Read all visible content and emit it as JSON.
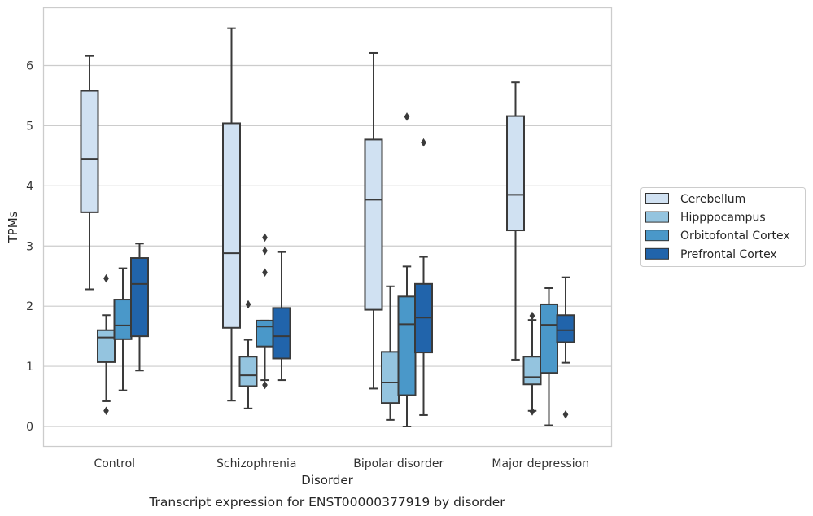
{
  "chart_data": {
    "type": "boxplot",
    "title": "",
    "caption": "Transcript expression for ENST00000377919 by disorder",
    "xlabel": "Disorder",
    "ylabel": "TPMs",
    "ylim": [
      -0.32,
      6.95
    ],
    "yticks": [
      0,
      1,
      2,
      3,
      4,
      5,
      6
    ],
    "grid": "horizontal",
    "legend_position": "right",
    "categories": [
      "Control",
      "Schizophrenia",
      "Bipolar disorder",
      "Major depression"
    ],
    "series": [
      {
        "name": "Cerebellum",
        "color": "#d0e1f2",
        "boxes": [
          {
            "whislo": 2.28,
            "q1": 3.56,
            "med": 4.45,
            "q3": 5.58,
            "whishi": 6.16,
            "fliers": []
          },
          {
            "whislo": 0.43,
            "q1": 1.64,
            "med": 2.88,
            "q3": 5.04,
            "whishi": 6.62,
            "fliers": []
          },
          {
            "whislo": 0.63,
            "q1": 1.94,
            "med": 3.77,
            "q3": 4.77,
            "whishi": 6.21,
            "fliers": []
          },
          {
            "whislo": 1.11,
            "q1": 3.26,
            "med": 3.85,
            "q3": 5.16,
            "whishi": 5.72,
            "fliers": []
          }
        ]
      },
      {
        "name": "Hipppocampus",
        "color": "#94c4df",
        "boxes": [
          {
            "whislo": 0.42,
            "q1": 1.07,
            "med": 1.48,
            "q3": 1.6,
            "whishi": 1.85,
            "fliers": [
              0.26,
              2.46
            ]
          },
          {
            "whislo": 0.3,
            "q1": 0.67,
            "med": 0.85,
            "q3": 1.16,
            "whishi": 1.44,
            "fliers": [
              2.03
            ]
          },
          {
            "whislo": 0.11,
            "q1": 0.39,
            "med": 0.73,
            "q3": 1.24,
            "whishi": 2.33,
            "fliers": []
          },
          {
            "whislo": 0.26,
            "q1": 0.7,
            "med": 0.82,
            "q3": 1.16,
            "whishi": 1.77,
            "fliers": [
              0.25,
              1.84
            ]
          }
        ]
      },
      {
        "name": "Orbitofontal Cortex",
        "color": "#4a98c9",
        "boxes": [
          {
            "whislo": 0.6,
            "q1": 1.45,
            "med": 1.68,
            "q3": 2.11,
            "whishi": 2.63,
            "fliers": []
          },
          {
            "whislo": 0.77,
            "q1": 1.33,
            "med": 1.66,
            "q3": 1.76,
            "whishi": 1.76,
            "fliers": [
              0.69,
              2.56,
              2.92,
              3.14
            ]
          },
          {
            "whislo": 0.0,
            "q1": 0.52,
            "med": 1.7,
            "q3": 2.16,
            "whishi": 2.66,
            "fliers": [
              5.15
            ]
          },
          {
            "whislo": 0.02,
            "q1": 0.89,
            "med": 1.69,
            "q3": 2.03,
            "whishi": 2.3,
            "fliers": []
          }
        ]
      },
      {
        "name": "Prefrontal Cortex",
        "color": "#2164ab",
        "boxes": [
          {
            "whislo": 0.93,
            "q1": 1.5,
            "med": 2.37,
            "q3": 2.8,
            "whishi": 3.04,
            "fliers": []
          },
          {
            "whislo": 0.77,
            "q1": 1.13,
            "med": 1.5,
            "q3": 1.97,
            "whishi": 2.9,
            "fliers": []
          },
          {
            "whislo": 0.19,
            "q1": 1.23,
            "med": 1.81,
            "q3": 2.37,
            "whishi": 2.82,
            "fliers": [
              4.72
            ]
          },
          {
            "whislo": 1.06,
            "q1": 1.4,
            "med": 1.6,
            "q3": 1.85,
            "whishi": 2.48,
            "fliers": [
              0.2
            ]
          }
        ]
      }
    ]
  }
}
